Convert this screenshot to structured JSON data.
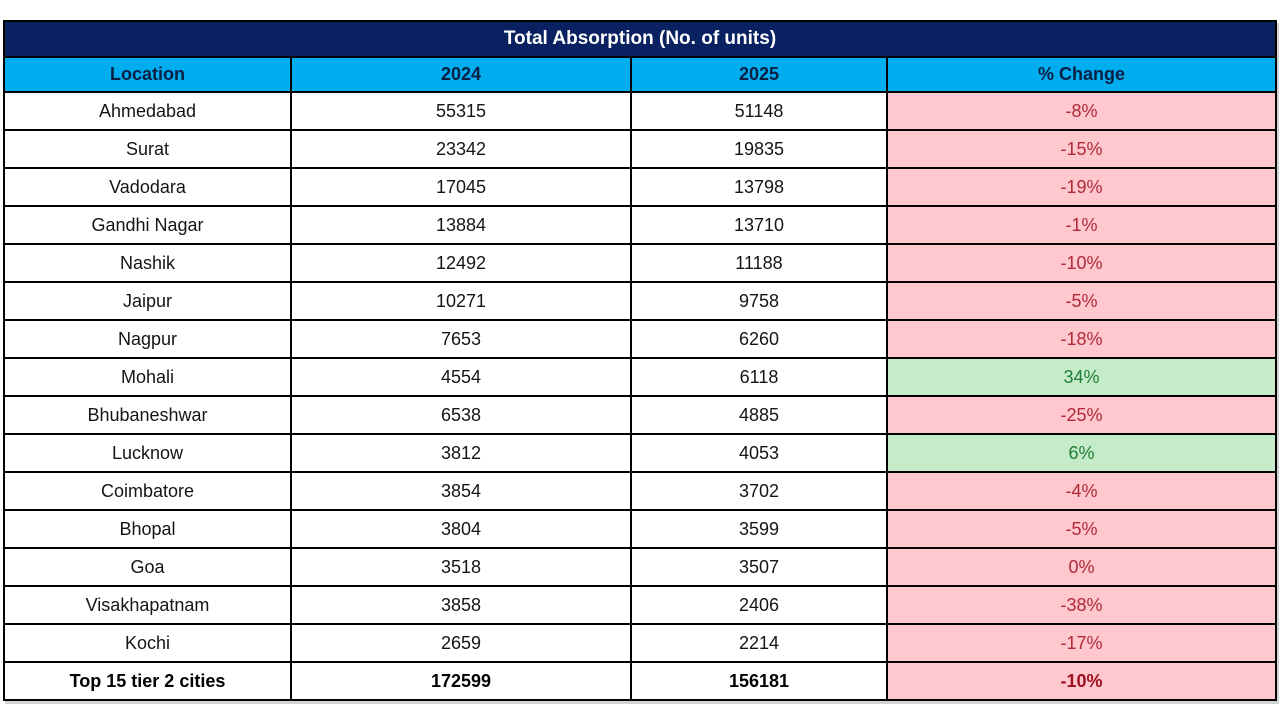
{
  "title": "Total Absorption (No. of units)",
  "columns": [
    "Location",
    "2024",
    "2025",
    "% Change"
  ],
  "rows": [
    {
      "location": "Ahmedabad",
      "y2024": "55315",
      "y2025": "51148",
      "change": "-8%",
      "trend": "neg"
    },
    {
      "location": "Surat",
      "y2024": "23342",
      "y2025": "19835",
      "change": "-15%",
      "trend": "neg"
    },
    {
      "location": "Vadodara",
      "y2024": "17045",
      "y2025": "13798",
      "change": "-19%",
      "trend": "neg"
    },
    {
      "location": "Gandhi Nagar",
      "y2024": "13884",
      "y2025": "13710",
      "change": "-1%",
      "trend": "neg"
    },
    {
      "location": "Nashik",
      "y2024": "12492",
      "y2025": "11188",
      "change": "-10%",
      "trend": "neg"
    },
    {
      "location": "Jaipur",
      "y2024": "10271",
      "y2025": "9758",
      "change": "-5%",
      "trend": "neg"
    },
    {
      "location": "Nagpur",
      "y2024": "7653",
      "y2025": "6260",
      "change": "-18%",
      "trend": "neg"
    },
    {
      "location": "Mohali",
      "y2024": "4554",
      "y2025": "6118",
      "change": "34%",
      "trend": "pos"
    },
    {
      "location": "Bhubaneshwar",
      "y2024": "6538",
      "y2025": "4885",
      "change": "-25%",
      "trend": "neg"
    },
    {
      "location": "Lucknow",
      "y2024": "3812",
      "y2025": "4053",
      "change": "6%",
      "trend": "pos"
    },
    {
      "location": "Coimbatore",
      "y2024": "3854",
      "y2025": "3702",
      "change": "-4%",
      "trend": "neg"
    },
    {
      "location": "Bhopal",
      "y2024": "3804",
      "y2025": "3599",
      "change": "-5%",
      "trend": "neg"
    },
    {
      "location": "Goa",
      "y2024": "3518",
      "y2025": "3507",
      "change": "0%",
      "trend": "neg"
    },
    {
      "location": "Visakhapatnam",
      "y2024": "3858",
      "y2025": "2406",
      "change": "-38%",
      "trend": "neg"
    },
    {
      "location": "Kochi",
      "y2024": "2659",
      "y2025": "2214",
      "change": "-17%",
      "trend": "neg"
    }
  ],
  "total": {
    "location": "Top 15 tier 2 cities",
    "y2024": "172599",
    "y2025": "156181",
    "change": "-10%",
    "trend": "neg"
  },
  "colors": {
    "title_bg": "#0A2161",
    "title_text": "#FFFFFF",
    "header_bg": "#00AEEF",
    "header_text": "#0A1F44",
    "negative_fill": "#FFC7CE",
    "negative_text": "#B02A37",
    "positive_fill": "#C6EBC8",
    "positive_text": "#1E7E34",
    "border": "#000000"
  },
  "chart_data": {
    "type": "table",
    "title": "Total Absorption (No. of units)",
    "columns": [
      "Location",
      "2024",
      "2025",
      "% Change"
    ],
    "categories": [
      "Ahmedabad",
      "Surat",
      "Vadodara",
      "Gandhi Nagar",
      "Nashik",
      "Jaipur",
      "Nagpur",
      "Mohali",
      "Bhubaneshwar",
      "Lucknow",
      "Coimbatore",
      "Bhopal",
      "Goa",
      "Visakhapatnam",
      "Kochi"
    ],
    "series": [
      {
        "name": "2024",
        "values": [
          55315,
          23342,
          17045,
          13884,
          12492,
          10271,
          7653,
          4554,
          6538,
          3812,
          3854,
          3804,
          3518,
          3858,
          2659
        ]
      },
      {
        "name": "2025",
        "values": [
          51148,
          19835,
          13798,
          13710,
          11188,
          9758,
          6260,
          6118,
          4885,
          4053,
          3702,
          3599,
          3507,
          2406,
          2214
        ]
      },
      {
        "name": "% Change",
        "values": [
          -8,
          -15,
          -19,
          -1,
          -10,
          -5,
          -18,
          34,
          -25,
          6,
          -4,
          -5,
          0,
          -38,
          -17
        ]
      }
    ],
    "total_row": {
      "label": "Top 15 tier 2 cities",
      "2024": 172599,
      "2025": 156181,
      "pct_change": -10
    },
    "notes": "Negative % Change cells shaded light red with dark red text; positive shaded light green with green text"
  }
}
